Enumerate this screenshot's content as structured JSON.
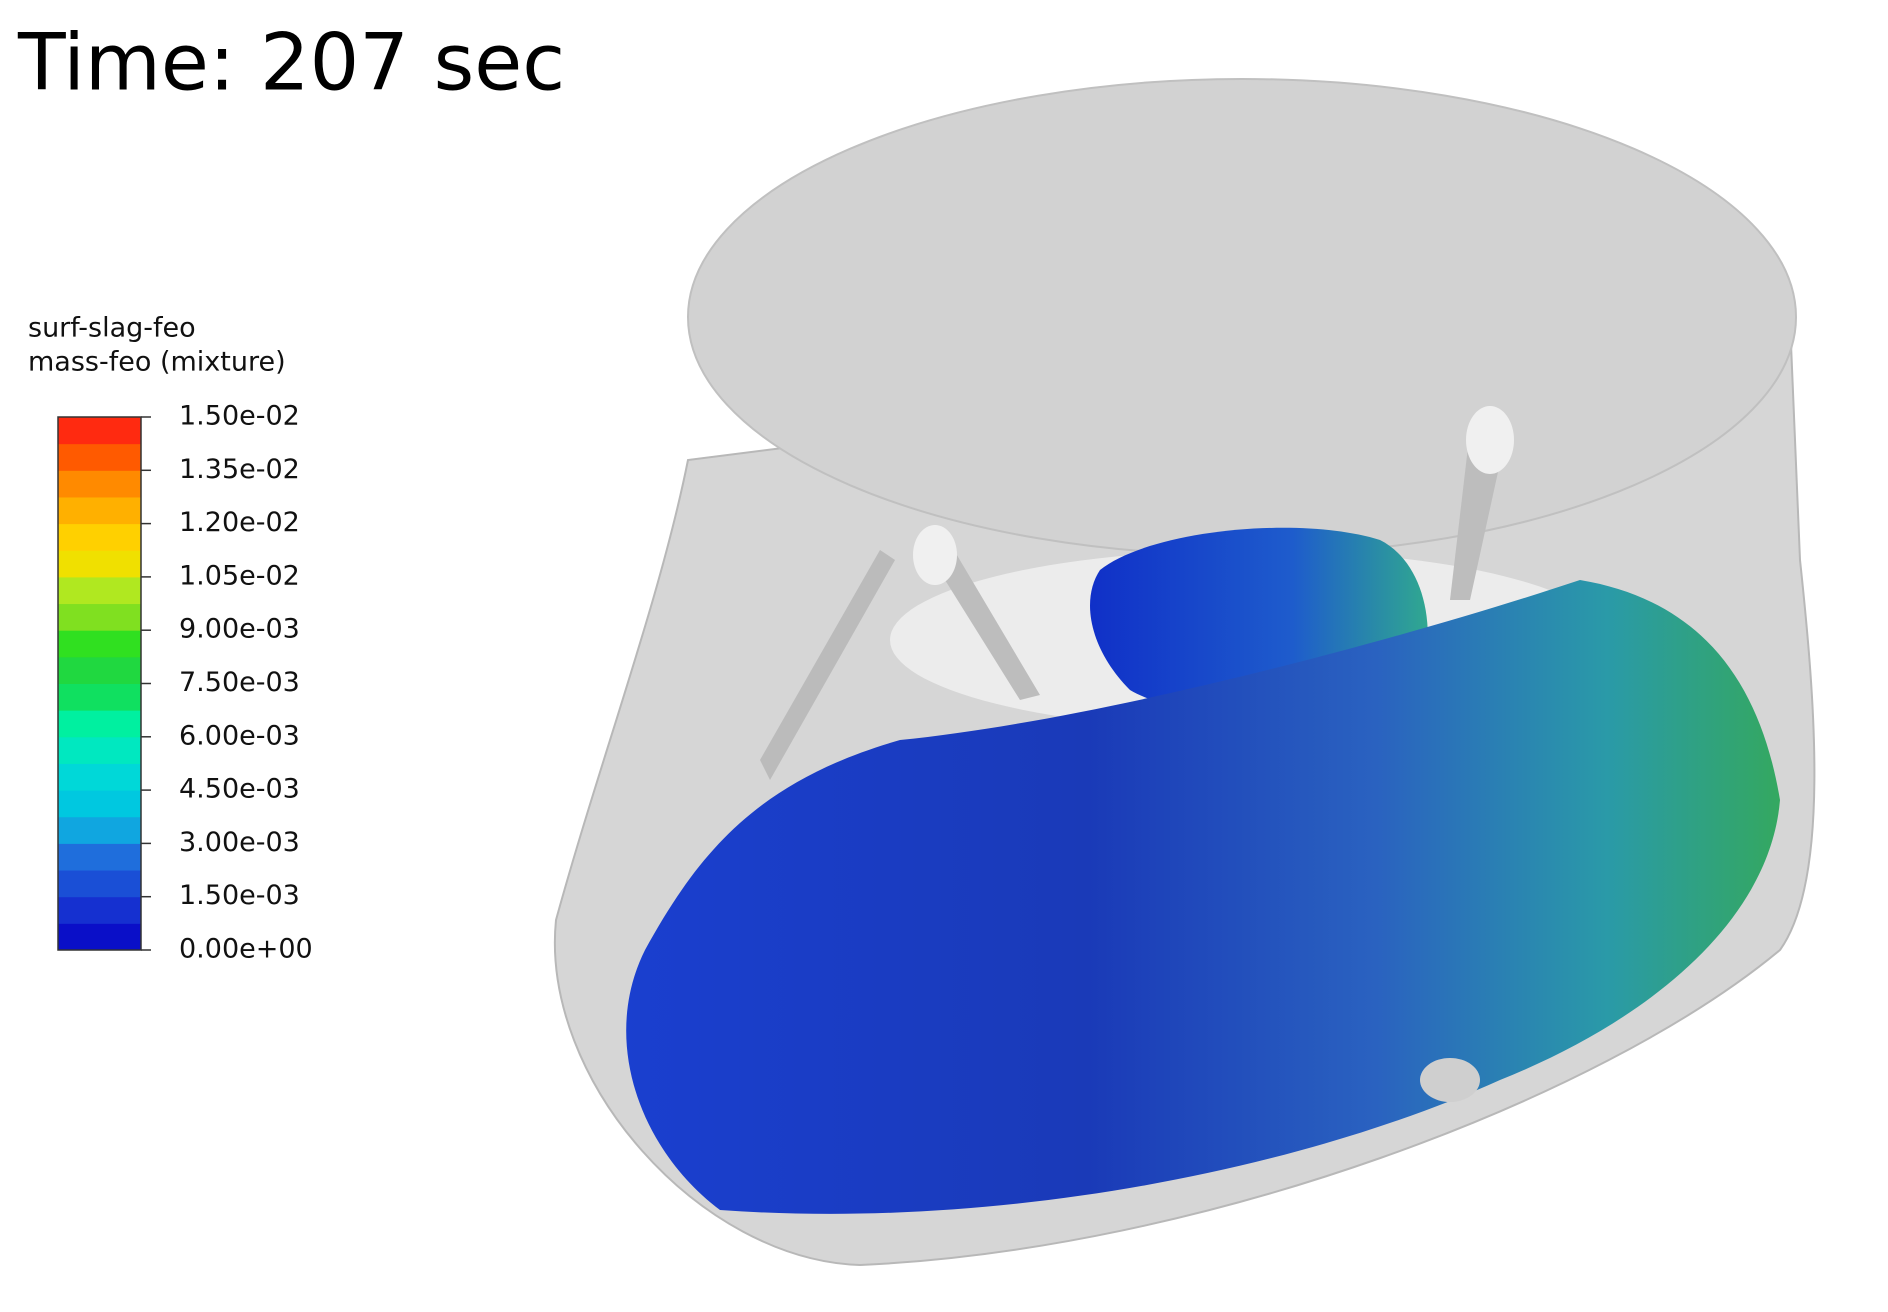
{
  "title": "Time: 207 sec",
  "legend": {
    "title_lines": [
      "surf-slag-feo",
      "mass-feo (mixture)"
    ],
    "range": [
      0,
      0.015
    ],
    "colors": [
      "#0a0fc8",
      "#1530d0",
      "#1a4fd6",
      "#1f6edc",
      "#10a6e0",
      "#00c8e0",
      "#00d8d8",
      "#00e8c0",
      "#00f0a0",
      "#10e060",
      "#20d840",
      "#30e020",
      "#80e020",
      "#b0e820",
      "#f0e000",
      "#ffd000",
      "#ffb000",
      "#ff8a00",
      "#ff5a00",
      "#ff2a10"
    ],
    "ticks": [
      {
        "value": 0.015,
        "label": "1.50e-02"
      },
      {
        "value": 0.0135,
        "label": "1.35e-02"
      },
      {
        "value": 0.012,
        "label": "1.20e-02"
      },
      {
        "value": 0.0105,
        "label": "1.05e-02"
      },
      {
        "value": 0.009,
        "label": "9.00e-03"
      },
      {
        "value": 0.0075,
        "label": "7.50e-03"
      },
      {
        "value": 0.006,
        "label": "6.00e-03"
      },
      {
        "value": 0.0045,
        "label": "4.50e-03"
      },
      {
        "value": 0.003,
        "label": "3.00e-03"
      },
      {
        "value": 0.0015,
        "label": "1.50e-03"
      },
      {
        "value": 0,
        "label": "0.00e+00"
      }
    ]
  }
}
